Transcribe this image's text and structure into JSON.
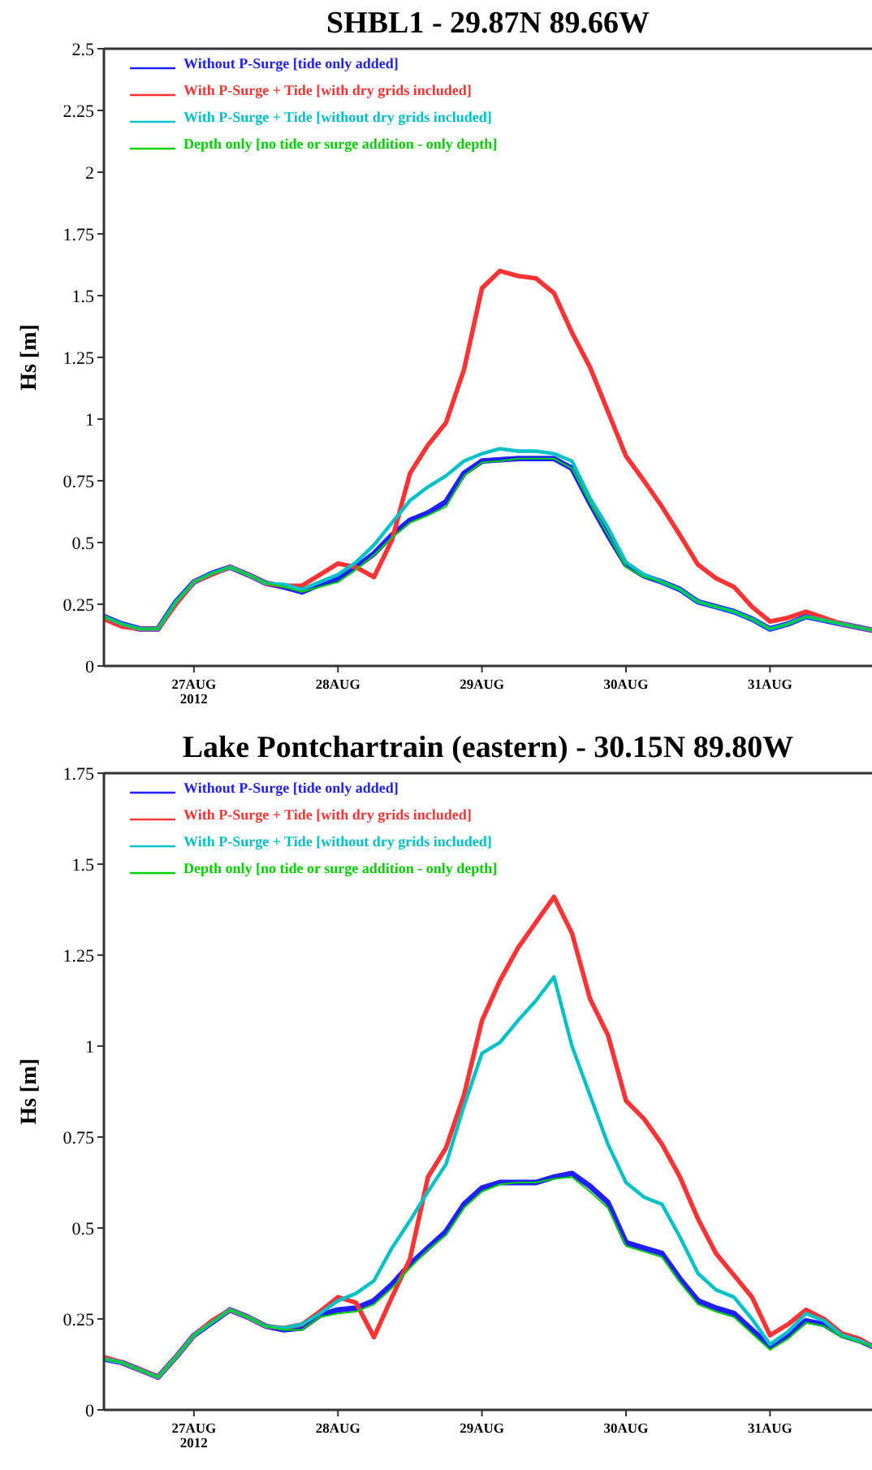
{
  "chart_data": [
    {
      "type": "line",
      "title": "SHBL1 - 29.87N 89.66W",
      "ylabel": "Hs [m]",
      "legend": "top left",
      "grid": false,
      "marker": "none",
      "line_style": "solid",
      "x": [
        "2012-08-26T09:00",
        "2012-08-26T12:00",
        "2012-08-26T15:00",
        "2012-08-26T18:00",
        "2012-08-26T21:00",
        "2012-08-27T00:00",
        "2012-08-27T03:00",
        "2012-08-27T06:00",
        "2012-08-27T09:00",
        "2012-08-27T12:00",
        "2012-08-27T15:00",
        "2012-08-27T18:00",
        "2012-08-27T21:00",
        "2012-08-28T00:00",
        "2012-08-28T03:00",
        "2012-08-28T06:00",
        "2012-08-28T09:00",
        "2012-08-28T12:00",
        "2012-08-28T15:00",
        "2012-08-28T18:00",
        "2012-08-28T21:00",
        "2012-08-29T00:00",
        "2012-08-29T03:00",
        "2012-08-29T06:00",
        "2012-08-29T09:00",
        "2012-08-29T12:00",
        "2012-08-29T15:00",
        "2012-08-29T18:00",
        "2012-08-29T21:00",
        "2012-08-30T00:00",
        "2012-08-30T03:00",
        "2012-08-30T06:00",
        "2012-08-30T09:00",
        "2012-08-30T12:00",
        "2012-08-30T15:00",
        "2012-08-30T18:00",
        "2012-08-30T21:00",
        "2012-08-31T00:00",
        "2012-08-31T03:00",
        "2012-08-31T06:00",
        "2012-08-31T09:00",
        "2012-08-31T12:00",
        "2012-08-31T15:00",
        "2012-08-31T17:00"
      ],
      "xlim": [
        "2012-08-26T09:00",
        "2012-08-31T17:00"
      ],
      "xticks": [
        {
          "value": "2012-08-27",
          "label": "27AUG\n2012"
        },
        {
          "value": "2012-08-28",
          "label": "28AUG"
        },
        {
          "value": "2012-08-29",
          "label": "29AUG"
        },
        {
          "value": "2012-08-30",
          "label": "30AUG"
        },
        {
          "value": "2012-08-31",
          "label": "31AUG"
        }
      ],
      "ylim": [
        0,
        2.5
      ],
      "yticks": [
        0,
        0.25,
        0.5,
        0.75,
        1,
        1.25,
        1.5,
        1.75,
        2,
        2.25,
        2.5
      ],
      "series": [
        {
          "name": "Without P-Surge [tide only added]",
          "color": "#2020ff",
          "values": [
            0.2,
            0.17,
            0.15,
            0.15,
            0.26,
            0.34,
            0.375,
            0.4,
            0.37,
            0.335,
            0.32,
            0.3,
            0.33,
            0.35,
            0.4,
            0.455,
            0.53,
            0.59,
            0.62,
            0.665,
            0.78,
            0.83,
            0.835,
            0.84,
            0.84,
            0.84,
            0.8,
            0.66,
            0.53,
            0.41,
            0.365,
            0.34,
            0.31,
            0.26,
            0.24,
            0.22,
            0.19,
            0.15,
            0.17,
            0.2,
            0.185,
            0.17,
            0.155,
            0.145
          ]
        },
        {
          "name": "With P-Surge + Tide [with dry grids included]",
          "color": "#ff3333",
          "values": [
            0.19,
            0.16,
            0.15,
            0.15,
            0.25,
            0.34,
            0.37,
            0.4,
            0.37,
            0.335,
            0.325,
            0.325,
            0.37,
            0.415,
            0.4,
            0.36,
            0.51,
            0.78,
            0.895,
            0.985,
            1.2,
            1.53,
            1.6,
            1.58,
            1.57,
            1.51,
            1.35,
            1.21,
            1.03,
            0.85,
            0.75,
            0.645,
            0.53,
            0.41,
            0.355,
            0.32,
            0.24,
            0.18,
            0.195,
            0.22,
            0.195,
            0.17,
            0.155,
            0.145
          ]
        },
        {
          "name": "With P-Surge + Tide [without dry grids included]",
          "color": "#00c0c8",
          "values": [
            0.2,
            0.17,
            0.15,
            0.15,
            0.26,
            0.34,
            0.375,
            0.4,
            0.37,
            0.335,
            0.33,
            0.31,
            0.34,
            0.37,
            0.42,
            0.49,
            0.58,
            0.67,
            0.725,
            0.77,
            0.83,
            0.86,
            0.88,
            0.87,
            0.87,
            0.86,
            0.83,
            0.68,
            0.56,
            0.42,
            0.37,
            0.34,
            0.31,
            0.26,
            0.24,
            0.22,
            0.19,
            0.15,
            0.17,
            0.2,
            0.185,
            0.17,
            0.155,
            0.145
          ]
        },
        {
          "name": "Depth only [no tide or surge addition - only depth]",
          "color": "#00d000",
          "values": [
            0.2,
            0.17,
            0.15,
            0.15,
            0.26,
            0.34,
            0.375,
            0.4,
            0.37,
            0.335,
            0.32,
            0.3,
            0.32,
            0.34,
            0.39,
            0.45,
            0.52,
            0.58,
            0.61,
            0.645,
            0.77,
            0.825,
            0.83,
            0.84,
            0.84,
            0.84,
            0.8,
            0.66,
            0.53,
            0.4,
            0.36,
            0.34,
            0.31,
            0.26,
            0.24,
            0.22,
            0.19,
            0.15,
            0.17,
            0.2,
            0.185,
            0.17,
            0.155,
            0.145
          ]
        }
      ]
    },
    {
      "type": "line",
      "title": "Lake Pontchartrain (eastern) - 30.15N 89.80W",
      "ylabel": "Hs [m]",
      "legend": "top left",
      "grid": false,
      "marker": "none",
      "line_style": "solid",
      "x": [
        "2012-08-26T09:00",
        "2012-08-26T12:00",
        "2012-08-26T15:00",
        "2012-08-26T18:00",
        "2012-08-26T21:00",
        "2012-08-27T00:00",
        "2012-08-27T03:00",
        "2012-08-27T06:00",
        "2012-08-27T09:00",
        "2012-08-27T12:00",
        "2012-08-27T15:00",
        "2012-08-27T18:00",
        "2012-08-27T21:00",
        "2012-08-28T00:00",
        "2012-08-28T03:00",
        "2012-08-28T06:00",
        "2012-08-28T09:00",
        "2012-08-28T12:00",
        "2012-08-28T15:00",
        "2012-08-28T18:00",
        "2012-08-28T21:00",
        "2012-08-29T00:00",
        "2012-08-29T03:00",
        "2012-08-29T06:00",
        "2012-08-29T09:00",
        "2012-08-29T12:00",
        "2012-08-29T15:00",
        "2012-08-29T18:00",
        "2012-08-29T21:00",
        "2012-08-30T00:00",
        "2012-08-30T03:00",
        "2012-08-30T06:00",
        "2012-08-30T09:00",
        "2012-08-30T12:00",
        "2012-08-30T15:00",
        "2012-08-30T18:00",
        "2012-08-30T21:00",
        "2012-08-31T00:00",
        "2012-08-31T03:00",
        "2012-08-31T06:00",
        "2012-08-31T09:00",
        "2012-08-31T12:00",
        "2012-08-31T15:00",
        "2012-08-31T17:00"
      ],
      "xlim": [
        "2012-08-26T09:00",
        "2012-08-31T17:00"
      ],
      "xticks": [
        {
          "value": "2012-08-27",
          "label": "27AUG\n2012"
        },
        {
          "value": "2012-08-28",
          "label": "28AUG"
        },
        {
          "value": "2012-08-29",
          "label": "29AUG"
        },
        {
          "value": "2012-08-30",
          "label": "30AUG"
        },
        {
          "value": "2012-08-31",
          "label": "31AUG"
        }
      ],
      "ylim": [
        0,
        1.75
      ],
      "yticks": [
        0,
        0.25,
        0.5,
        0.75,
        1,
        1.25,
        1.5,
        1.75
      ],
      "series": [
        {
          "name": "Without P-Surge [tide only added]",
          "color": "#2020ff",
          "values": [
            0.14,
            0.13,
            0.11,
            0.09,
            0.145,
            0.205,
            0.24,
            0.275,
            0.255,
            0.23,
            0.22,
            0.225,
            0.26,
            0.275,
            0.28,
            0.3,
            0.345,
            0.4,
            0.445,
            0.49,
            0.565,
            0.61,
            0.625,
            0.625,
            0.625,
            0.64,
            0.65,
            0.615,
            0.57,
            0.46,
            0.445,
            0.43,
            0.36,
            0.3,
            0.28,
            0.265,
            0.22,
            0.175,
            0.205,
            0.245,
            0.235,
            0.205,
            0.19,
            0.175
          ]
        },
        {
          "name": "With P-Surge + Tide [with dry grids included]",
          "color": "#ff3333",
          "values": [
            0.145,
            0.13,
            0.11,
            0.09,
            0.145,
            0.205,
            0.245,
            0.275,
            0.255,
            0.23,
            0.225,
            0.235,
            0.27,
            0.31,
            0.295,
            0.2,
            0.31,
            0.415,
            0.64,
            0.72,
            0.865,
            1.07,
            1.18,
            1.27,
            1.34,
            1.41,
            1.31,
            1.13,
            1.03,
            0.85,
            0.8,
            0.73,
            0.64,
            0.525,
            0.43,
            0.37,
            0.31,
            0.205,
            0.235,
            0.275,
            0.25,
            0.21,
            0.195,
            0.175
          ]
        },
        {
          "name": "With P-Surge + Tide [without dry grids included]",
          "color": "#00c0c8",
          "values": [
            0.14,
            0.13,
            0.11,
            0.09,
            0.145,
            0.205,
            0.24,
            0.275,
            0.255,
            0.23,
            0.225,
            0.235,
            0.265,
            0.3,
            0.32,
            0.355,
            0.445,
            0.52,
            0.6,
            0.675,
            0.835,
            0.98,
            1.01,
            1.07,
            1.125,
            1.19,
            1.0,
            0.865,
            0.73,
            0.625,
            0.585,
            0.565,
            0.475,
            0.375,
            0.33,
            0.31,
            0.25,
            0.18,
            0.215,
            0.265,
            0.245,
            0.205,
            0.19,
            0.175
          ]
        },
        {
          "name": "Depth only [no tide or surge addition - only depth]",
          "color": "#00d000",
          "values": [
            0.14,
            0.13,
            0.11,
            0.09,
            0.145,
            0.205,
            0.24,
            0.275,
            0.255,
            0.23,
            0.22,
            0.22,
            0.255,
            0.265,
            0.27,
            0.29,
            0.335,
            0.39,
            0.44,
            0.48,
            0.555,
            0.6,
            0.62,
            0.625,
            0.625,
            0.635,
            0.64,
            0.6,
            0.555,
            0.45,
            0.435,
            0.42,
            0.35,
            0.29,
            0.27,
            0.255,
            0.21,
            0.165,
            0.195,
            0.24,
            0.23,
            0.2,
            0.185,
            0.175
          ]
        }
      ]
    }
  ]
}
